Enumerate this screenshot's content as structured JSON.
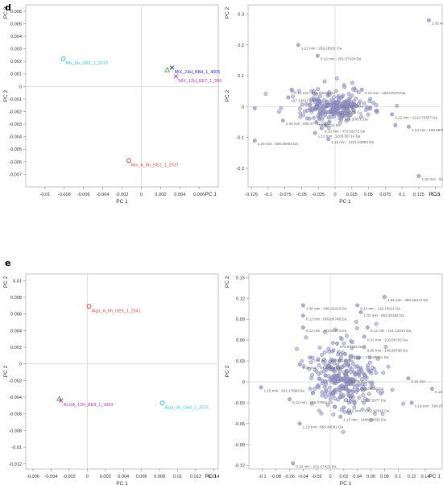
{
  "panel_labels": {
    "d": "d",
    "e": "e"
  },
  "chart_data": [
    {
      "id": "d-scores",
      "type": "scatter",
      "xlabel": "PC 1",
      "xlabel_right": "PC 1",
      "ylabel": "PC 2",
      "xlim": [
        -0.012,
        0.008
      ],
      "ylim": [
        -0.008,
        0.0065
      ],
      "xticks": [
        "-0.01",
        "-0.008",
        "-0.006",
        "-0.004",
        "-0.002",
        "0",
        "0.002",
        "0.004",
        "0.006"
      ],
      "xtick_values": [
        -0.01,
        -0.008,
        -0.006,
        -0.004,
        -0.002,
        0,
        0.002,
        0.004,
        0.006
      ],
      "yticks": [
        "0.006",
        "0.005",
        "0.004",
        "0.003",
        "0.002",
        "0.001",
        "0",
        "-0.001",
        "-0.002",
        "-0.003",
        "-0.004",
        "-0.005",
        "-0.006",
        "-0.007"
      ],
      "ytick_values": [
        0.006,
        0.005,
        0.004,
        0.003,
        0.002,
        0.001,
        0,
        -0.001,
        -0.002,
        -0.003,
        -0.004,
        -0.005,
        -0.006,
        -0.007
      ],
      "points": [
        {
          "x": -0.0081,
          "y": 0.0022,
          "label": "Mix_0h_GB2_1_2513",
          "color": "#3dc4e0",
          "marker": "circle"
        },
        {
          "x": 0.0027,
          "y": 0.0013,
          "label": "",
          "color": "#4caf50",
          "marker": "triangle"
        },
        {
          "x": 0.0032,
          "y": 0.0015,
          "label": "MIX_24H_BB4_1_4005",
          "color": "#2b2bd9",
          "marker": "cross"
        },
        {
          "x": 0.0036,
          "y": 0.0008,
          "label": "MIX_12H_BE7_1_3992",
          "color": "#cc33cc",
          "marker": "cross"
        },
        {
          "x": -0.0013,
          "y": -0.0059,
          "label": "Mix_A_6h_GE2_1_2537",
          "color": "#e05040",
          "marker": "circle"
        }
      ]
    },
    {
      "id": "d-loadings",
      "type": "scatter",
      "xlabel": "PC 1",
      "xlabel_right": "PC 1",
      "ylabel": "PC 2",
      "xlim": [
        -0.13,
        0.16
      ],
      "ylim": [
        -0.26,
        0.33
      ],
      "xticks": [
        "-0.125",
        "-0.1",
        "-0.075",
        "-0.05",
        "-0.025",
        "0",
        "0.025",
        "0.05",
        "0.075",
        "0.1",
        "0.125",
        "0.15"
      ],
      "xtick_values": [
        -0.125,
        -0.1,
        -0.075,
        -0.05,
        -0.025,
        0,
        0.025,
        0.05,
        0.075,
        0.1,
        0.125,
        0.15
      ],
      "yticks": [
        "0.3",
        "0.2",
        "0.1",
        "0",
        "-0.1",
        "-0.2"
      ],
      "ytick_values": [
        0.3,
        0.2,
        0.1,
        0,
        -0.1,
        -0.2
      ],
      "cluster": {
        "cx": 0.0,
        "cy": 0.0,
        "sx": 0.026,
        "sy": 0.025,
        "n": 260
      },
      "labeled_points": [
        {
          "x": 0.14,
          "y": 0.28,
          "label": "1.32 min : ..."
        },
        {
          "x": -0.055,
          "y": 0.2,
          "label": "1.12 min : 259.18931 Da"
        },
        {
          "x": -0.026,
          "y": 0.165,
          "label": "0.12 min : 201.07428 Da"
        },
        {
          "x": 0.04,
          "y": 0.055,
          "label": "0.12 min : 165.07678 Da"
        },
        {
          "x": -0.065,
          "y": 0.055,
          "label": "0.10 min : 514.99565 Da"
        },
        {
          "x": -0.07,
          "y": 0.03,
          "label": "227.14621 Da"
        },
        {
          "x": 0.003,
          "y": 0.012,
          "label": "225.19210 Da"
        },
        {
          "x": 0.001,
          "y": -0.01,
          "label": "127.09974 Da"
        },
        {
          "x": 0.01,
          "y": -0.03,
          "label": "974.30870 Da"
        },
        {
          "x": -0.078,
          "y": -0.045,
          "label": "1.30 min : 608.27732 Da"
        },
        {
          "x": -0.028,
          "y": -0.05,
          "label": "86.09231 Da"
        },
        {
          "x": -0.02,
          "y": -0.07,
          "label": "0.10 min : 473.93272 Da"
        },
        {
          "x": -0.03,
          "y": -0.085,
          "label": "1.12 min : 1265.66714 Da"
        },
        {
          "x": -0.01,
          "y": -0.105,
          "label": "1.15 min : 1221.63883 Da"
        },
        {
          "x": 0.085,
          "y": -0.025,
          "label": "0.12 min : 1212.73357 Da"
        },
        {
          "x": 0.09,
          "y": -0.06,
          "label": ""
        },
        {
          "x": 0.11,
          "y": -0.065,
          "label": "1.34 min : 180.08757 Da"
        },
        {
          "x": -0.12,
          "y": -0.11,
          "label": "1.26 min : 608.30052 Da"
        },
        {
          "x": -0.12,
          "y": -0.005,
          "label": ""
        },
        {
          "x": 0.125,
          "y": -0.225,
          "label": "1.32 min : 226..."
        }
      ]
    },
    {
      "id": "e-scores",
      "type": "scatter",
      "xlabel": "PC 1",
      "xlabel_right": "PC 1",
      "ylabel": "PC 2",
      "xlim": [
        -0.0068,
        0.0145
      ],
      "ylim": [
        -0.0126,
        0.0108
      ],
      "xticks": [
        "-0.006",
        "-0.004",
        "-0.002",
        "0",
        "0.002",
        "0.004",
        "0.006",
        "0.008",
        "0.01",
        "0.012",
        "0.014"
      ],
      "xtick_values": [
        -0.006,
        -0.004,
        -0.002,
        0,
        0.002,
        0.004,
        0.006,
        0.008,
        0.01,
        0.012,
        0.014
      ],
      "yticks": [
        "0.01",
        "0.008",
        "0.006",
        "0.004",
        "0.002",
        "0",
        "-0.002",
        "-0.004",
        "-0.006",
        "-0.008",
        "-0.01",
        "-0.012"
      ],
      "ytick_values": [
        0.01,
        0.008,
        0.006,
        0.004,
        0.002,
        0,
        -0.002,
        -0.004,
        -0.006,
        -0.008,
        -0.01,
        -0.012
      ],
      "points": [
        {
          "x": 0.0002,
          "y": 0.0069,
          "label": "Alga_A_6h_GE6_1_2541",
          "color": "#e05040",
          "marker": "circle"
        },
        {
          "x": -0.0031,
          "y": -0.0042,
          "label": "",
          "color": "#4caf50",
          "marker": "triangle"
        },
        {
          "x": -0.0029,
          "y": -0.0044,
          "label": "ALGA_12H_BE8_1_3993",
          "color": "#cc33cc",
          "marker": "cross"
        },
        {
          "x": 0.0083,
          "y": -0.0047,
          "label": "Alga_0h_GB4_1_2575",
          "color": "#3dc4e0",
          "marker": "circle"
        }
      ]
    },
    {
      "id": "e-loadings",
      "type": "scatter",
      "xlabel": "PC 1",
      "xlabel_right": "PC 1",
      "ylabel": "PC 2",
      "xlim": [
        -0.12,
        0.165
      ],
      "ylim": [
        -0.125,
        0.155
      ],
      "xticks": [
        "-0.1",
        "-0.08",
        "-0.06",
        "-0.04",
        "-0.02",
        "0",
        "0.02",
        "0.04",
        "0.06",
        "0.08",
        "0.1",
        "0.12",
        "0.14"
      ],
      "xtick_values": [
        -0.1,
        -0.08,
        -0.06,
        -0.04,
        -0.02,
        0,
        0.02,
        0.04,
        0.06,
        0.08,
        0.1,
        0.12,
        0.14
      ],
      "yticks": [
        "0.15",
        "0.12",
        "0.09",
        "0.06",
        "0.03",
        "0",
        "-0.03",
        "-0.06",
        "-0.09",
        "-0.12"
      ],
      "ytick_values": [
        0.15,
        0.12,
        0.09,
        0.06,
        0.03,
        0,
        -0.03,
        -0.06,
        -0.09,
        -0.12
      ],
      "cluster": {
        "cx": 0.02,
        "cy": 0.005,
        "sx": 0.028,
        "sy": 0.028,
        "n": 300
      },
      "labeled_points": [
        {
          "x": 0.08,
          "y": 0.122,
          "label": "1.22 min : 480.25474 Da"
        },
        {
          "x": -0.04,
          "y": 0.11,
          "label": "1.30 min : 436.22910 Da"
        },
        {
          "x": 0.04,
          "y": 0.11,
          "label": "0.14 min : 115.13611 Da"
        },
        {
          "x": 0.045,
          "y": 0.1,
          "label": "1.32 min : 653.33184 Da"
        },
        {
          "x": -0.04,
          "y": 0.095,
          "label": "0.12 min : 609.90748 Da"
        },
        {
          "x": 0.055,
          "y": 0.078,
          "label": "0.12 min : 101.12043 Da"
        },
        {
          "x": -0.04,
          "y": 0.078,
          "label": "0.12 min : 473.93274 Da"
        },
        {
          "x": 0.05,
          "y": 0.065,
          "label": "0.02 min : 216.09702 Da"
        },
        {
          "x": 0.05,
          "y": 0.05,
          "label": "0.29 min : 108.99798 Da"
        },
        {
          "x": 0.022,
          "y": 0.04,
          "label": "1.12 min : 173.08051 Da"
        },
        {
          "x": 0.01,
          "y": 0.055,
          "label": "674.87125 Da"
        },
        {
          "x": -0.03,
          "y": 0.035,
          "label": "0.66 min : 456.34193 Da"
        },
        {
          "x": -0.045,
          "y": 0.025,
          "label": "0.05 min : 94.29006 Da"
        },
        {
          "x": -0.102,
          "y": -0.008,
          "label": "1.15 min : 241.17868 Da"
        },
        {
          "x": -0.06,
          "y": -0.025,
          "label": "0.12 min : 165.07694 Da"
        },
        {
          "x": 0.015,
          "y": -0.022,
          "label": "1.13 min : 1218.72077 Da"
        },
        {
          "x": 0.04,
          "y": -0.005,
          "label": "292.20880 Da"
        },
        {
          "x": 0.02,
          "y": 0.005,
          "label": "418.21530 Da"
        },
        {
          "x": 0.02,
          "y": -0.037,
          "label": "1.13 min : 1562.92818 Da"
        },
        {
          "x": 0.015,
          "y": -0.05,
          "label": "1.13 min : 1496.86031 Da"
        },
        {
          "x": -0.045,
          "y": -0.06,
          "label": "1.13 min : 869.46581 Da"
        },
        {
          "x": -0.055,
          "y": -0.117,
          "label": "0.10 min : 201.07425 Da"
        },
        {
          "x": 0.115,
          "y": 0.005,
          "label": "0.10 min : ..."
        },
        {
          "x": 0.12,
          "y": -0.03,
          "label": "0.16 min : 599.875..."
        },
        {
          "x": 0.15,
          "y": -0.01,
          "label": "0.12 min : ..."
        }
      ]
    }
  ]
}
